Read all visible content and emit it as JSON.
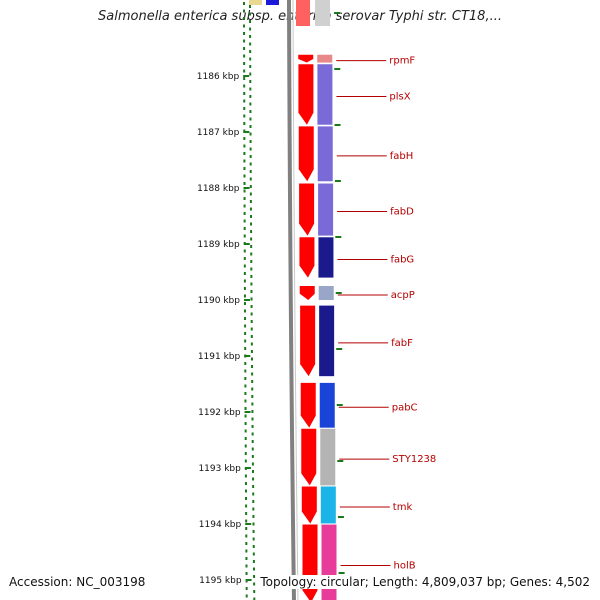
{
  "title": "Salmonella enterica subsp. enterica serovar Typhi str. CT18,...",
  "accession_text": "Accession: NC_003198",
  "topology_text": "Topology: circular; Length: 4,809,037 bp; Genes: 4,502",
  "ticks": [
    {
      "label": "1186 kbp",
      "kbp": 1186
    },
    {
      "label": "1187 kbp",
      "kbp": 1187
    },
    {
      "label": "1188 kbp",
      "kbp": 1188
    },
    {
      "label": "1189 kbp",
      "kbp": 1189
    },
    {
      "label": "1190 kbp",
      "kbp": 1190
    },
    {
      "label": "1191 kbp",
      "kbp": 1191
    },
    {
      "label": "1192 kbp",
      "kbp": 1192
    },
    {
      "label": "1193 kbp",
      "kbp": 1193
    },
    {
      "label": "1194 kbp",
      "kbp": 1194
    },
    {
      "label": "1195 kbp",
      "kbp": 1195
    }
  ],
  "genes": [
    {
      "name": "rpmF",
      "start_kbp": 1185.62,
      "end_kbp": 1185.76,
      "color": "#e8888a"
    },
    {
      "name": "plsX",
      "start_kbp": 1185.79,
      "end_kbp": 1186.87,
      "color": "#7a6ad8"
    },
    {
      "name": "fabH",
      "start_kbp": 1186.9,
      "end_kbp": 1187.88,
      "color": "#7a6ad8"
    },
    {
      "name": "fabD",
      "start_kbp": 1187.92,
      "end_kbp": 1188.85,
      "color": "#7a6ad8"
    },
    {
      "name": "fabG",
      "start_kbp": 1188.88,
      "end_kbp": 1189.6,
      "color": "#1a1a8c"
    },
    {
      "name": "acpP",
      "start_kbp": 1189.75,
      "end_kbp": 1190.0,
      "color": "#9aa6c8"
    },
    {
      "name": "fabF",
      "start_kbp": 1190.1,
      "end_kbp": 1191.36,
      "color": "#1a1a8c"
    },
    {
      "name": "pabC",
      "start_kbp": 1191.48,
      "end_kbp": 1192.28,
      "color": "#1a44d8"
    },
    {
      "name": "STY1238",
      "start_kbp": 1192.3,
      "end_kbp": 1193.31,
      "color": "#b4b4b4"
    },
    {
      "name": "tmk",
      "start_kbp": 1193.33,
      "end_kbp": 1193.99,
      "color": "#1ab4e8"
    },
    {
      "name": "holB",
      "start_kbp": 1194.01,
      "end_kbp": 1195.4,
      "color": "#e83c9a"
    }
  ],
  "colors": {
    "cds": "#ff0000",
    "backbone": "#808080",
    "label_line": "#b40000",
    "gc_dots": "#1a7a1a"
  }
}
